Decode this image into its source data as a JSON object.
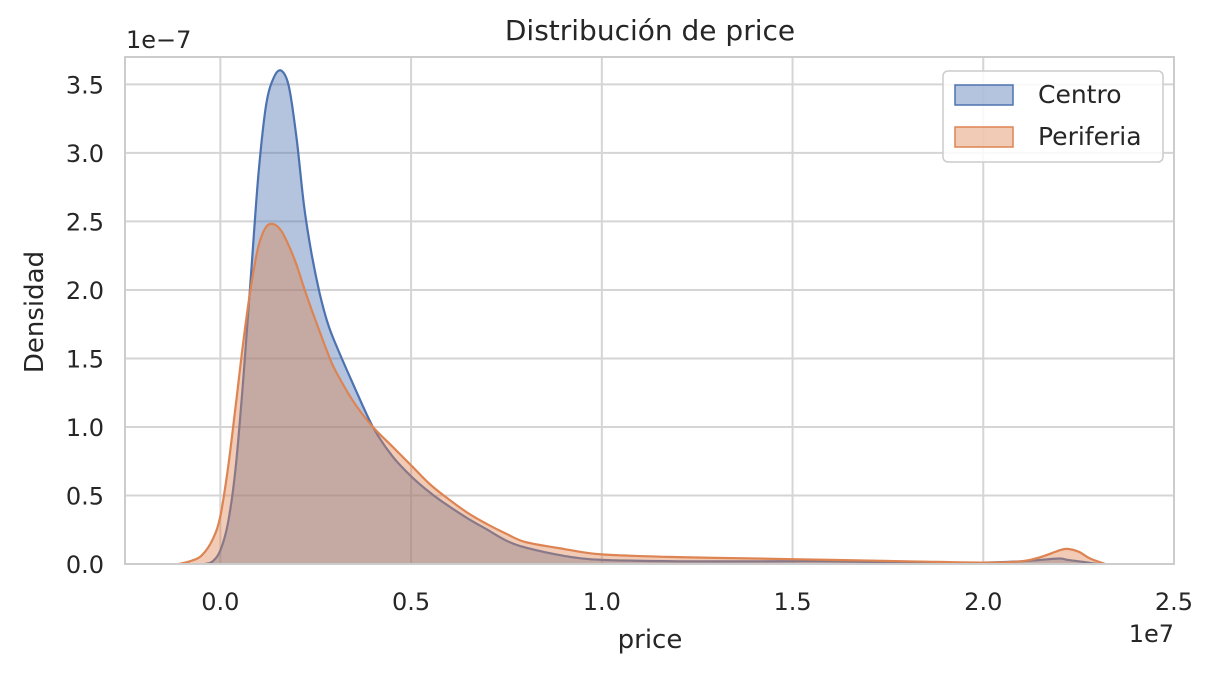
{
  "chart_data": {
    "type": "area",
    "title": "Distribución de price",
    "xlabel": "price",
    "ylabel": "Densidad",
    "x_scale_label": "1e7",
    "y_scale_label": "1e−7",
    "xlim": [
      -2500000,
      25000000
    ],
    "ylim": [
      0,
      3.7e-07
    ],
    "x_ticks": [
      0,
      5000000,
      10000000,
      15000000,
      20000000,
      25000000
    ],
    "x_tick_labels": [
      "0.0",
      "0.5",
      "1.0",
      "1.5",
      "2.0",
      "2.5"
    ],
    "y_ticks": [
      0,
      5e-08,
      1e-07,
      1.5e-07,
      2e-07,
      2.5e-07,
      3e-07,
      3.5e-07
    ],
    "y_tick_labels": [
      "0.0",
      "0.5",
      "1.0",
      "1.5",
      "2.0",
      "2.5",
      "3.0",
      "3.5"
    ],
    "grid": true,
    "legend_position": "top-right",
    "series": [
      {
        "name": "Centro",
        "color": "#4c72b0",
        "x": [
          -400000,
          -200000,
          0,
          200000,
          400000,
          600000,
          800000,
          1000000,
          1200000,
          1400000,
          1600000,
          1800000,
          2000000,
          2200000,
          2400000,
          2600000,
          2800000,
          3000000,
          3500000,
          4000000,
          4500000,
          5000000,
          5500000,
          6000000,
          6500000,
          7000000,
          7500000,
          8000000,
          9000000,
          10000000,
          12000000,
          14000000,
          16000000,
          18000000,
          20000000,
          21000000,
          21500000,
          22000000,
          22200000,
          22500000,
          23000000
        ],
        "y": [
          0,
          2e-09,
          1e-08,
          3e-08,
          7e-08,
          1.35e-07,
          2.1e-07,
          2.85e-07,
          3.35e-07,
          3.55e-07,
          3.6e-07,
          3.48e-07,
          3.1e-07,
          2.6e-07,
          2.25e-07,
          1.98e-07,
          1.77e-07,
          1.62e-07,
          1.3e-07,
          1e-07,
          7.9e-08,
          6.4e-08,
          5.2e-08,
          4.2e-08,
          3.3e-08,
          2.5e-08,
          1.7e-08,
          1.2e-08,
          6e-09,
          3e-09,
          2e-09,
          2e-09,
          2e-09,
          1e-09,
          1e-09,
          2e-09,
          3e-09,
          4e-09,
          3e-09,
          2e-09,
          0
        ]
      },
      {
        "name": "Periferia",
        "color": "#dd8452",
        "x": [
          -1100000,
          -800000,
          -500000,
          -200000,
          0,
          200000,
          400000,
          600000,
          800000,
          1000000,
          1200000,
          1400000,
          1600000,
          1800000,
          2000000,
          2200000,
          2400000,
          2600000,
          2800000,
          3000000,
          3500000,
          4000000,
          4500000,
          5000000,
          5500000,
          6000000,
          6500000,
          7000000,
          7500000,
          8000000,
          9000000,
          10000000,
          12000000,
          14000000,
          16000000,
          18000000,
          20000000,
          21000000,
          21500000,
          22000000,
          22200000,
          22500000,
          22800000,
          23200000
        ],
        "y": [
          0,
          2e-09,
          6e-09,
          1.8e-08,
          3.5e-08,
          7e-08,
          1.15e-07,
          1.62e-07,
          2.02e-07,
          2.32e-07,
          2.46e-07,
          2.48e-07,
          2.43e-07,
          2.32e-07,
          2.18e-07,
          2.01e-07,
          1.85e-07,
          1.7e-07,
          1.55e-07,
          1.42e-07,
          1.18e-07,
          1e-07,
          8.6e-08,
          7.2e-08,
          5.8e-08,
          4.7e-08,
          3.7e-08,
          2.9e-08,
          2.2e-08,
          1.6e-08,
          1.1e-08,
          7e-09,
          5e-09,
          4e-09,
          3e-09,
          2e-09,
          1e-09,
          2e-09,
          5e-09,
          1e-08,
          1.1e-08,
          9e-09,
          4e-09,
          0
        ]
      }
    ]
  }
}
